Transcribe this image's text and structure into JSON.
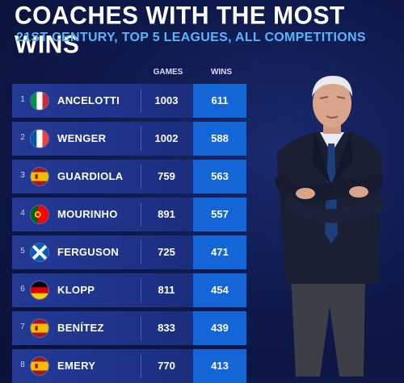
{
  "header": {
    "title": "COACHES WITH THE MOST WINS",
    "subtitle": "21ST CENTURY, TOP 5 LEAGUES, ALL COMPETITIONS"
  },
  "columns": {
    "games": "GAMES",
    "wins": "WINS"
  },
  "rows": [
    {
      "rank": "1",
      "name": "ANCELOTTI",
      "games": "1003",
      "wins": "611",
      "flag": "italy-flag-icon"
    },
    {
      "rank": "2",
      "name": "WENGER",
      "games": "1002",
      "wins": "588",
      "flag": "france-flag-icon"
    },
    {
      "rank": "3",
      "name": "GUARDIOLA",
      "games": "759",
      "wins": "563",
      "flag": "spain-flag-icon"
    },
    {
      "rank": "4",
      "name": "MOURINHO",
      "games": "891",
      "wins": "557",
      "flag": "portugal-flag-icon"
    },
    {
      "rank": "5",
      "name": "FERGUSON",
      "games": "725",
      "wins": "471",
      "flag": "scotland-flag-icon"
    },
    {
      "rank": "6",
      "name": "KLOPP",
      "games": "811",
      "wins": "454",
      "flag": "germany-flag-icon"
    },
    {
      "rank": "7",
      "name": "BENÍTEZ",
      "games": "833",
      "wins": "439",
      "flag": "spain-flag-icon"
    },
    {
      "rank": "8",
      "name": "EMERY",
      "games": "770",
      "wins": "413",
      "flag": "spain-flag-icon"
    }
  ],
  "colors": {
    "background": "#0f1a4d",
    "row_bar": "#1d3185",
    "wins_box": "#1466d8",
    "subtitle": "#58b6ff"
  }
}
